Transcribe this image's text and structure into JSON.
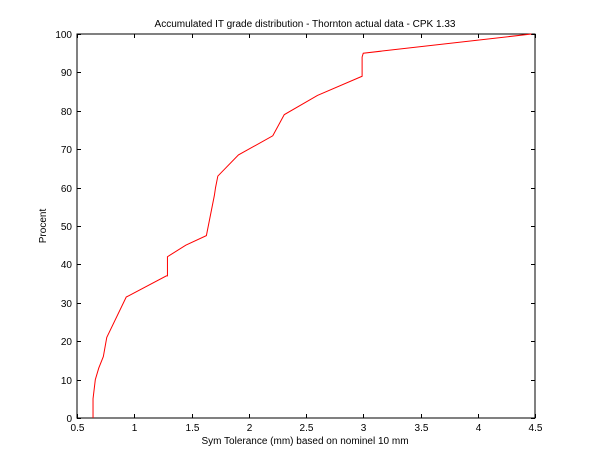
{
  "chart_data": {
    "type": "line",
    "title": "Accumulated IT grade distribution - Thornton actual data - CPK 1.33",
    "xlabel": "Sym Tolerance (mm) based on nominel 10 mm",
    "ylabel": "Procent",
    "xlim": [
      0.5,
      4.5
    ],
    "ylim": [
      0,
      100
    ],
    "xticks": [
      0.5,
      1,
      1.5,
      2,
      2.5,
      3,
      3.5,
      4,
      4.5
    ],
    "yticks": [
      0,
      10,
      20,
      30,
      40,
      50,
      60,
      70,
      80,
      90,
      100
    ],
    "xtick_labels": [
      "0.5",
      "1",
      "1.5",
      "2",
      "2.5",
      "3",
      "3.5",
      "4",
      "4.5"
    ],
    "ytick_labels": [
      "0",
      "10",
      "20",
      "30",
      "40",
      "50",
      "60",
      "70",
      "80",
      "90",
      "100"
    ],
    "grid": false,
    "series": [
      {
        "color": "#ff0000",
        "x": [
          0.64,
          0.64,
          0.66,
          0.69,
          0.73,
          0.76,
          0.93,
          1.28,
          1.29,
          1.29,
          1.45,
          1.63,
          1.7,
          1.71,
          1.73,
          1.91,
          2.21,
          2.31,
          2.6,
          2.99,
          2.99,
          3.0,
          4.47
        ],
        "y": [
          0,
          5,
          10,
          13,
          16,
          21,
          31.5,
          37,
          37,
          42,
          45,
          47.5,
          58,
          60,
          63,
          68.5,
          73.5,
          79,
          84,
          89,
          94,
          95,
          100
        ]
      }
    ]
  }
}
